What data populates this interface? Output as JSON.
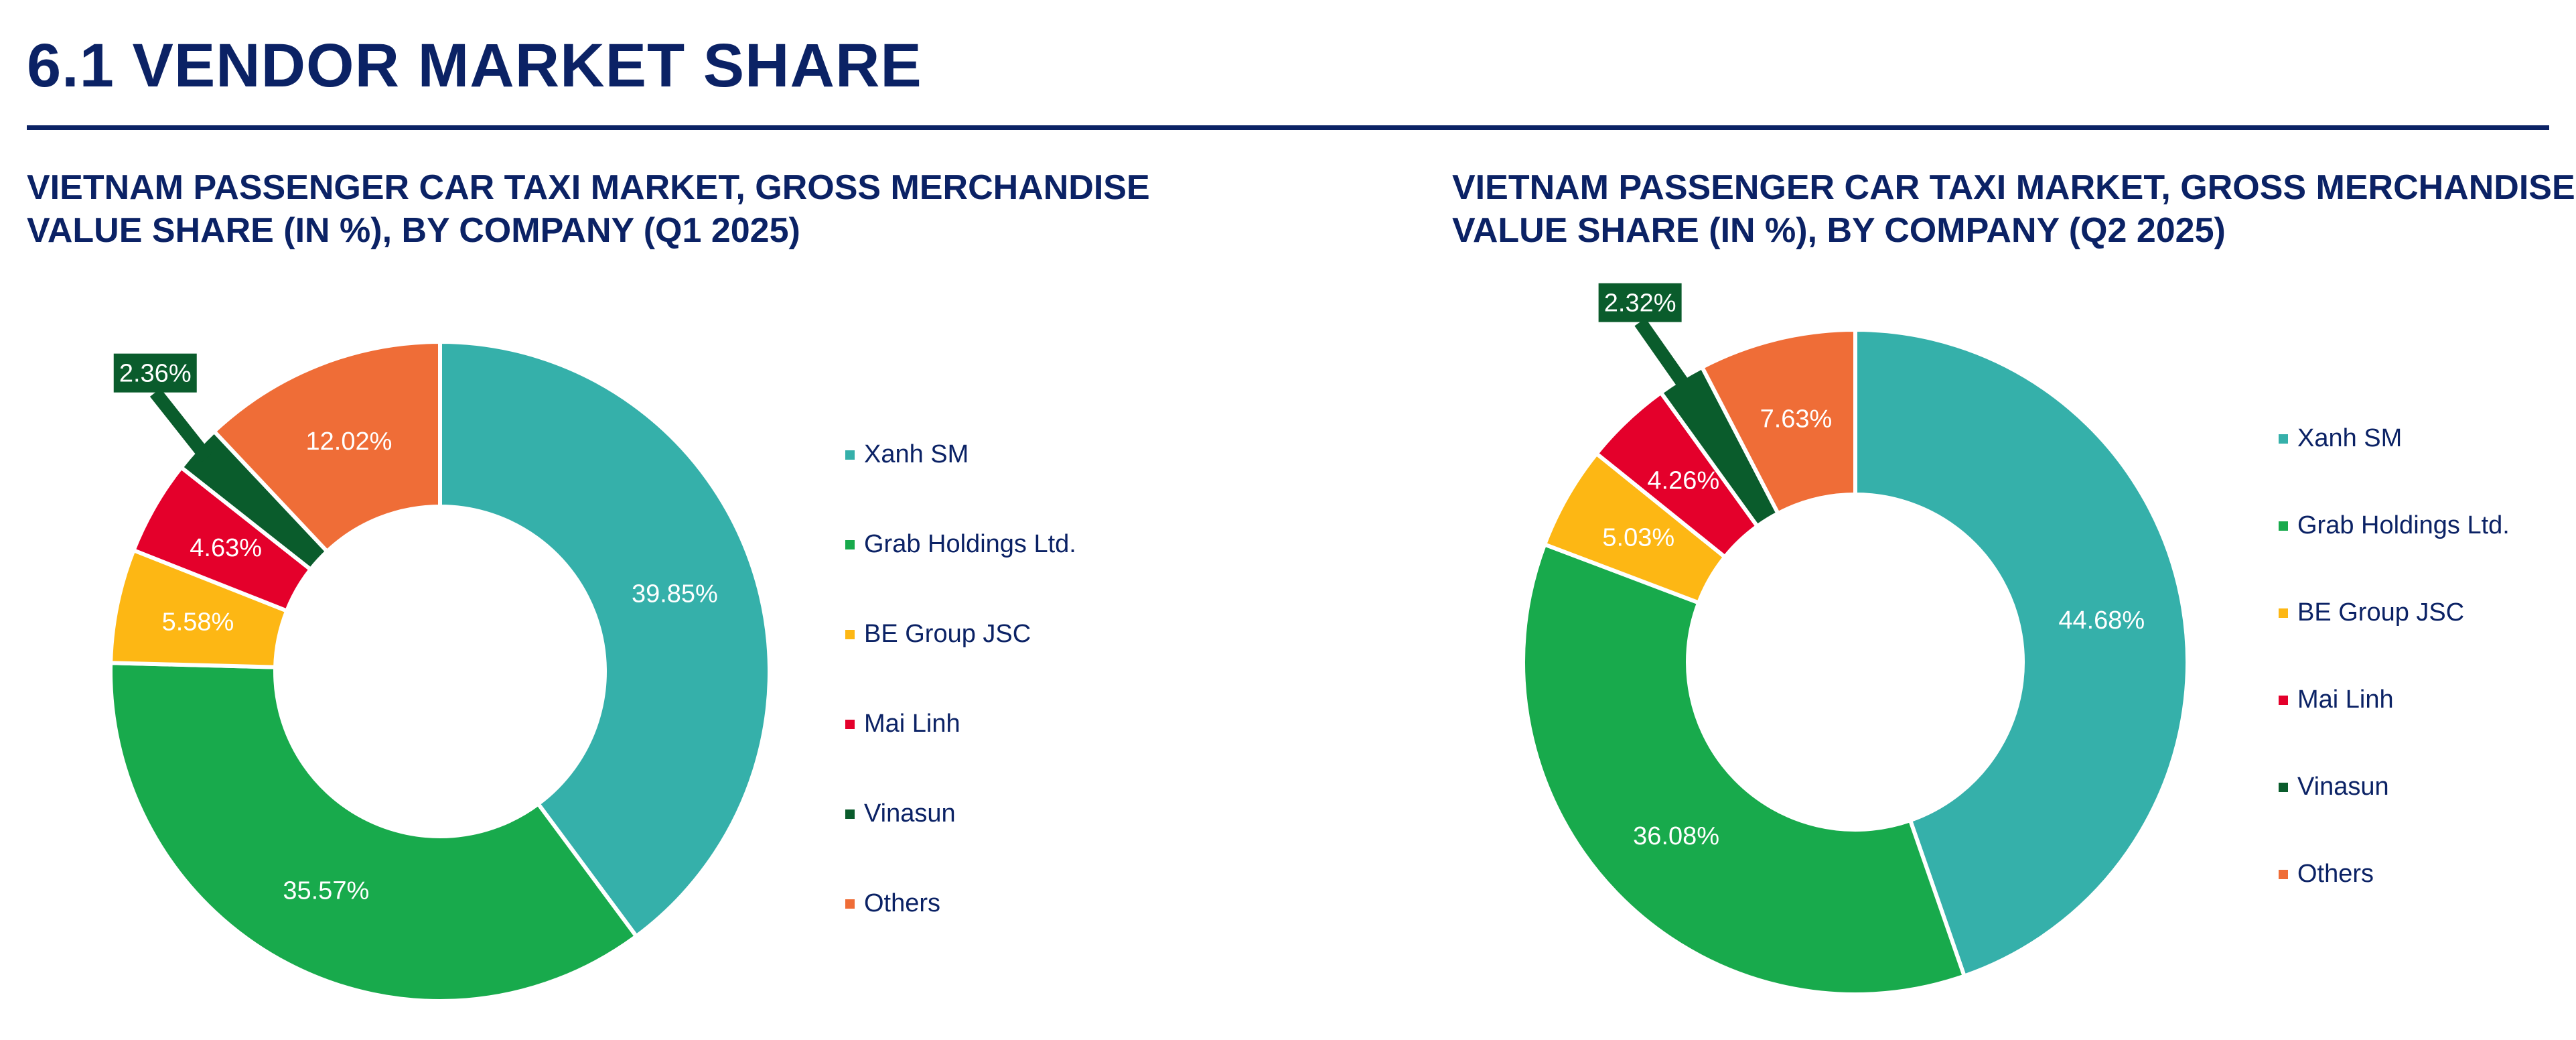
{
  "page": {
    "title": "6.1 VENDOR MARKET SHARE"
  },
  "chart_data": [
    {
      "type": "pie",
      "title": "VIETNAM PASSENGER CAR TAXI MARKET, GROSS MERCHANDISE VALUE SHARE (IN %), BY COMPANY (Q1 2025)",
      "donut": true,
      "legend_position": "right",
      "categories": [
        "Xanh SM",
        "Grab Holdings Ltd.",
        "BE Group JSC",
        "Mai Linh",
        "Vinasun",
        "Others"
      ],
      "values": [
        39.85,
        35.57,
        5.58,
        4.63,
        2.36,
        12.02
      ],
      "labels": [
        "39.85%",
        "35.57%",
        "5.58%",
        "4.63%",
        "2.36%",
        "12.02%"
      ],
      "colors": [
        "#35b0aa",
        "#18aa4c",
        "#fdb714",
        "#e4002b",
        "#0a5c2c",
        "#ef6d37"
      ]
    },
    {
      "type": "pie",
      "title": "VIETNAM PASSENGER CAR TAXI MARKET, GROSS MERCHANDISE VALUE SHARE (IN %), BY COMPANY (Q2 2025)",
      "donut": true,
      "legend_position": "right",
      "categories": [
        "Xanh SM",
        "Grab Holdings Ltd.",
        "BE Group JSC",
        "Mai Linh",
        "Vinasun",
        "Others"
      ],
      "values": [
        44.68,
        36.08,
        5.03,
        4.26,
        2.32,
        7.63
      ],
      "labels": [
        "44.68%",
        "36.08%",
        "5.03%",
        "4.26%",
        "2.32%",
        "7.63%"
      ],
      "colors": [
        "#35b0aa",
        "#18aa4c",
        "#fdb714",
        "#e4002b",
        "#0a5c2c",
        "#ef6d37"
      ]
    }
  ]
}
